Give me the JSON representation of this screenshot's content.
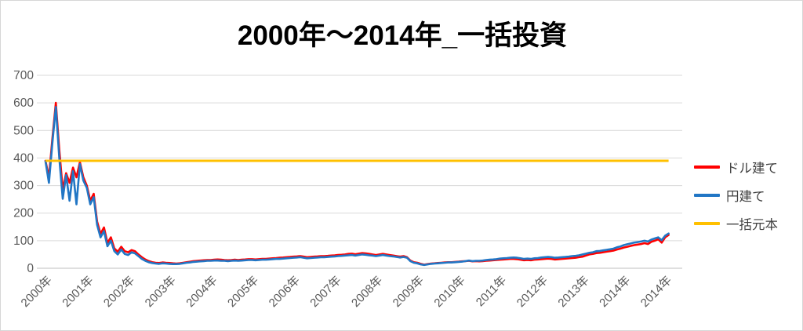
{
  "chart_data": {
    "type": "line",
    "title": "2000年～2014年_一括投資",
    "xlabel": "",
    "ylabel": "",
    "ylim": [
      0,
      700
    ],
    "y_ticks": [
      0,
      100,
      200,
      300,
      400,
      500,
      600,
      700
    ],
    "grid": "horizontal-only",
    "legend_position": "right",
    "x_unit": "months from 2000/01",
    "x_tick_labels": [
      "2000年",
      "2001年",
      "2002年",
      "2003年",
      "2004年",
      "2005年",
      "2006年",
      "2007年",
      "2008年",
      "2009年",
      "2010年",
      "2011年",
      "2012年",
      "2013年",
      "2014年",
      "2014年"
    ],
    "x_tick_month_positions": [
      0,
      12,
      24,
      36,
      48,
      60,
      72,
      84,
      96,
      108,
      120,
      132,
      144,
      156,
      168,
      180
    ],
    "colors": {
      "dollar": "#FF0000",
      "yen": "#2176C5",
      "principal": "#FFC000",
      "gridline": "#D9D9D9",
      "axis_zero_line": "#BFBFBF",
      "axis_text": "#595959",
      "legend_text": "#3F3F3F",
      "title_text": "#000000"
    },
    "series": [
      {
        "name": "ドル建て",
        "color": "#FF0000",
        "values": [
          390,
          330,
          470,
          600,
          430,
          285,
          345,
          310,
          365,
          330,
          385,
          330,
          300,
          245,
          270,
          170,
          125,
          148,
          92,
          112,
          72,
          60,
          78,
          62,
          58,
          66,
          62,
          50,
          40,
          32,
          26,
          22,
          20,
          19,
          21,
          20,
          19,
          18,
          17,
          18,
          20,
          22,
          24,
          26,
          27,
          28,
          29,
          30,
          30,
          31,
          32,
          31,
          30,
          29,
          30,
          31,
          30,
          31,
          32,
          33,
          33,
          32,
          33,
          34,
          34,
          35,
          36,
          37,
          38,
          39,
          40,
          41,
          42,
          43,
          44,
          42,
          40,
          41,
          42,
          43,
          44,
          44,
          45,
          46,
          47,
          48,
          49,
          50,
          52,
          53,
          51,
          53,
          55,
          54,
          52,
          50,
          48,
          50,
          52,
          50,
          48,
          46,
          44,
          42,
          44,
          40,
          28,
          22,
          20,
          16,
          13,
          15,
          17,
          18,
          19,
          20,
          21,
          22,
          22,
          23,
          24,
          25,
          26,
          27,
          25,
          26,
          25,
          26,
          27,
          28,
          29,
          30,
          31,
          32,
          33,
          34,
          34,
          33,
          31,
          29,
          30,
          29,
          31,
          32,
          33,
          34,
          35,
          34,
          32,
          33,
          34,
          35,
          36,
          37,
          38,
          40,
          42,
          46,
          50,
          52,
          55,
          56,
          58,
          60,
          62,
          64,
          68,
          71,
          75,
          78,
          81,
          84,
          86,
          88,
          91,
          88,
          96,
          100,
          105,
          93,
          112,
          121
        ]
      },
      {
        "name": "円建て",
        "color": "#2176C5",
        "values": [
          388,
          310,
          455,
          585,
          400,
          252,
          338,
          245,
          352,
          232,
          378,
          318,
          292,
          232,
          258,
          158,
          112,
          135,
          80,
          100,
          62,
          50,
          68,
          52,
          48,
          58,
          54,
          44,
          34,
          27,
          22,
          19,
          17,
          16,
          18,
          17,
          16,
          15,
          15,
          16,
          18,
          20,
          21,
          23,
          24,
          25,
          26,
          27,
          27,
          28,
          28,
          27,
          27,
          26,
          27,
          28,
          27,
          28,
          29,
          30,
          30,
          29,
          30,
          31,
          31,
          32,
          33,
          34,
          34,
          35,
          36,
          37,
          38,
          39,
          40,
          38,
          36,
          37,
          38,
          39,
          40,
          40,
          41,
          42,
          43,
          44,
          45,
          46,
          47,
          48,
          46,
          48,
          50,
          49,
          47,
          46,
          44,
          46,
          48,
          46,
          44,
          43,
          41,
          39,
          41,
          38,
          26,
          20,
          18,
          14,
          12,
          14,
          16,
          17,
          18,
          19,
          20,
          21,
          21,
          22,
          23,
          24,
          26,
          28,
          26,
          27,
          27,
          28,
          30,
          31,
          32,
          33,
          35,
          36,
          37,
          38,
          39,
          38,
          36,
          34,
          35,
          34,
          36,
          37,
          39,
          40,
          41,
          40,
          38,
          39,
          40,
          41,
          42,
          44,
          45,
          47,
          50,
          53,
          56,
          58,
          62,
          63,
          65,
          67,
          69,
          71,
          76,
          79,
          84,
          87,
          90,
          93,
          95,
          97,
          100,
          97,
          104,
          108,
          112,
          102,
          118,
          126
        ]
      },
      {
        "name": "一括元本",
        "color": "#FFC000",
        "constant": 390
      }
    ]
  }
}
